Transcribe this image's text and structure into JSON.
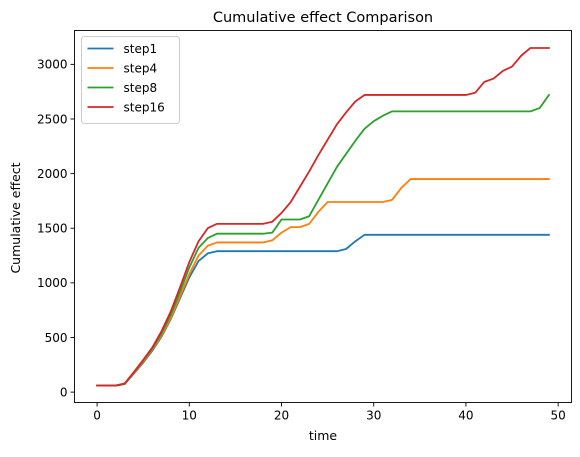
{
  "chart_data": {
    "type": "line",
    "title": "Cumulative effect Comparison",
    "xlabel": "time",
    "ylabel": "Cumulative effect",
    "xlim": [
      -2.45,
      51.45
    ],
    "ylim": [
      -95,
      3310
    ],
    "xticks": [
      0,
      10,
      20,
      30,
      40,
      50
    ],
    "yticks": [
      0,
      500,
      1000,
      1500,
      2000,
      2500,
      3000
    ],
    "grid": false,
    "legend_position": "top-left",
    "x": [
      0,
      1,
      2,
      3,
      4,
      5,
      6,
      7,
      8,
      9,
      10,
      11,
      12,
      13,
      14,
      15,
      16,
      17,
      18,
      19,
      20,
      21,
      22,
      23,
      24,
      25,
      26,
      27,
      28,
      29,
      30,
      31,
      32,
      33,
      34,
      35,
      36,
      37,
      38,
      39,
      40,
      41,
      42,
      43,
      44,
      45,
      46,
      47,
      48,
      49
    ],
    "series": [
      {
        "name": "step1",
        "color": "#1f77b4",
        "values": [
          60,
          60,
          60,
          75,
          170,
          270,
          380,
          510,
          670,
          860,
          1050,
          1200,
          1270,
          1290,
          1290,
          1290,
          1290,
          1290,
          1290,
          1290,
          1290,
          1290,
          1290,
          1290,
          1290,
          1290,
          1290,
          1310,
          1380,
          1440,
          1440,
          1440,
          1440,
          1440,
          1440,
          1440,
          1440,
          1440,
          1440,
          1440,
          1440,
          1440,
          1440,
          1440,
          1440,
          1440,
          1440,
          1440,
          1440,
          1440
        ]
      },
      {
        "name": "step4",
        "color": "#ff7f0e",
        "values": [
          60,
          60,
          60,
          75,
          175,
          280,
          390,
          520,
          680,
          880,
          1080,
          1250,
          1340,
          1370,
          1370,
          1370,
          1370,
          1370,
          1370,
          1390,
          1460,
          1510,
          1510,
          1540,
          1650,
          1740,
          1740,
          1740,
          1740,
          1740,
          1740,
          1740,
          1760,
          1870,
          1950,
          1950,
          1950,
          1950,
          1950,
          1950,
          1950,
          1950,
          1950,
          1950,
          1950,
          1950,
          1950,
          1950,
          1950,
          1950
        ]
      },
      {
        "name": "step8",
        "color": "#2ca02c",
        "values": [
          60,
          60,
          60,
          75,
          180,
          290,
          400,
          540,
          710,
          920,
          1140,
          1320,
          1410,
          1450,
          1450,
          1450,
          1450,
          1450,
          1450,
          1460,
          1580,
          1580,
          1580,
          1610,
          1760,
          1910,
          2060,
          2180,
          2300,
          2410,
          2480,
          2530,
          2570,
          2570,
          2570,
          2570,
          2570,
          2570,
          2570,
          2570,
          2570,
          2570,
          2570,
          2570,
          2570,
          2570,
          2570,
          2570,
          2600,
          2720
        ]
      },
      {
        "name": "step16",
        "color": "#d62728",
        "values": [
          60,
          60,
          60,
          80,
          185,
          295,
          410,
          560,
          740,
          960,
          1190,
          1380,
          1500,
          1540,
          1540,
          1540,
          1540,
          1540,
          1540,
          1560,
          1640,
          1740,
          1880,
          2020,
          2170,
          2310,
          2450,
          2560,
          2660,
          2720,
          2720,
          2720,
          2720,
          2720,
          2720,
          2720,
          2720,
          2720,
          2720,
          2720,
          2720,
          2740,
          2840,
          2870,
          2940,
          2980,
          3080,
          3150,
          3150,
          3150
        ]
      }
    ]
  }
}
